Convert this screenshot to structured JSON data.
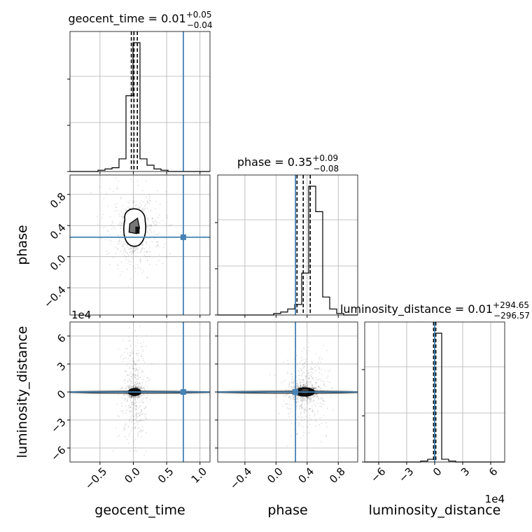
{
  "chart_data": {
    "type": "corner",
    "truth_color": "#4682b4",
    "truth": {
      "geocent_time": 0.75,
      "phase": 0.25,
      "luminosity_distance": 0.0
    },
    "parameters": [
      {
        "name": "geocent_time",
        "label": "geocent_time",
        "range": [
          -0.95,
          1.15
        ],
        "ticks": [
          -0.5,
          0.0,
          0.5,
          1.0
        ],
        "tick_labels": [
          "−0.5",
          "0.0",
          "0.5",
          "1.0"
        ],
        "title": "geocent_time = 0.01",
        "title_plus": "+0.05",
        "title_minus": "−0.04",
        "quantiles": [
          -0.03,
          0.01,
          0.06
        ],
        "hist_counts": [
          0,
          0,
          0,
          0,
          1,
          2,
          3,
          10,
          60,
          102,
          10,
          5,
          2,
          1,
          0,
          0,
          0,
          0,
          0,
          0
        ]
      },
      {
        "name": "phase",
        "label": "phase",
        "range": [
          -0.75,
          1.05
        ],
        "ticks": [
          -0.4,
          0.0,
          0.4,
          0.8
        ],
        "tick_labels": [
          "−0.4",
          "0.0",
          "0.4",
          "0.8"
        ],
        "title": "phase = 0.35",
        "title_plus": "+0.09",
        "title_minus": "−0.08",
        "quantiles": [
          0.27,
          0.35,
          0.44
        ],
        "hist_counts": [
          0,
          0,
          0,
          0,
          0,
          0,
          0,
          0,
          1,
          2,
          4,
          7,
          28,
          86,
          69,
          12,
          4,
          1,
          0,
          0
        ]
      },
      {
        "name": "luminosity_distance",
        "label": "luminosity_distance",
        "range": [
          -75000,
          75000
        ],
        "ticks": [
          -60000,
          -30000,
          0,
          30000,
          60000
        ],
        "tick_labels": [
          "−6",
          "−3",
          "0",
          "3",
          "6"
        ],
        "offset_label": "1e4",
        "title": "luminosity_distance = 0.01",
        "title_plus": "+294.65",
        "title_minus": "−296.57",
        "quantiles": [
          -296.56,
          0.01,
          294.66
        ],
        "hist_counts": [
          0,
          0,
          0,
          0,
          0,
          0,
          0,
          0,
          1,
          3,
          140,
          3,
          1,
          0,
          0,
          0,
          0,
          0,
          0,
          0
        ]
      }
    ]
  }
}
